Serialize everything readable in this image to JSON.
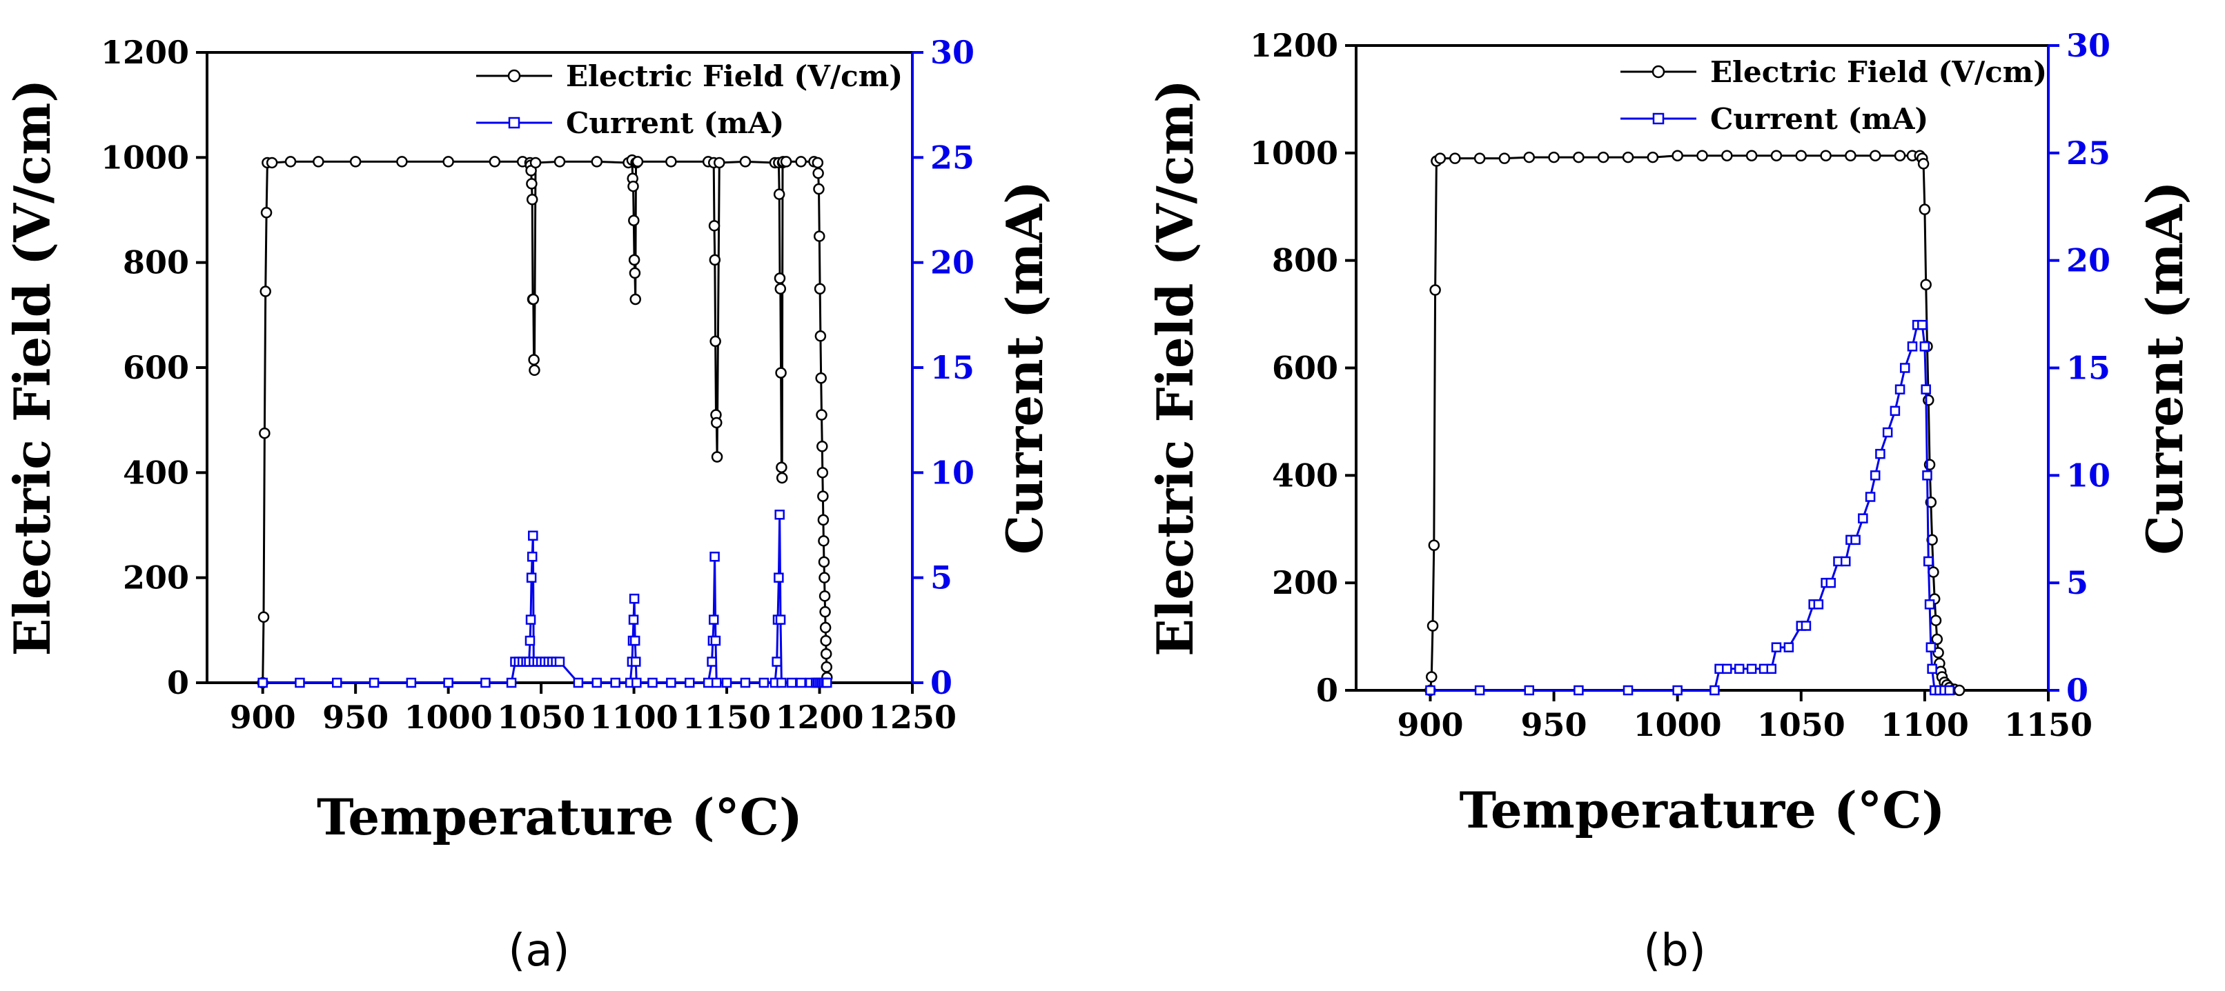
{
  "figure": {
    "panel_labels_text": [
      "(a)",
      "(b)"
    ],
    "colors": {
      "field": "#000000",
      "current": "#0000ee",
      "background": "#ffffff"
    }
  },
  "chart_data": [
    {
      "id": "a",
      "type": "line",
      "panel_label": "(a)",
      "xlabel": "Temperature (°C)",
      "ylabel": "Electric Field (V/cm)",
      "y2label": "Current (mA)",
      "xlim": [
        870,
        1250
      ],
      "ylim": [
        0,
        1200
      ],
      "y2lim": [
        0,
        30
      ],
      "xticks": [
        900,
        950,
        1000,
        1050,
        1100,
        1150,
        1200,
        1250
      ],
      "yticks": [
        0,
        200,
        400,
        600,
        800,
        1000,
        1200
      ],
      "y2ticks": [
        0,
        5,
        10,
        15,
        20,
        25,
        30
      ],
      "legend": [
        "Electric Field (V/cm)",
        "Current (mA)"
      ],
      "legend_position": "top-right",
      "series": [
        {
          "name": "Electric Field (V/cm)",
          "axis": "left",
          "marker": "circle",
          "color": "#000000",
          "x": [
            900,
            900.5,
            901,
            901.5,
            902,
            902.5,
            905,
            915,
            930,
            950,
            975,
            1000,
            1025,
            1040,
            1044,
            1044.3,
            1044.6,
            1044.9,
            1045.2,
            1045.5,
            1045.8,
            1046.1,
            1046.4,
            1047,
            1060,
            1080,
            1097,
            1099,
            1099.3,
            1099.6,
            1099.9,
            1100.2,
            1100.5,
            1100.8,
            1101.1,
            1101.4,
            1102,
            1120,
            1140,
            1143,
            1143.3,
            1143.6,
            1143.9,
            1144.2,
            1144.5,
            1144.8,
            1146,
            1160,
            1176,
            1178,
            1178.3,
            1178.6,
            1178.9,
            1179.2,
            1179.5,
            1179.8,
            1180.1,
            1180.4,
            1182,
            1190,
            1197,
            1199,
            1199.3,
            1199.6,
            1199.9,
            1200.2,
            1200.5,
            1200.8,
            1201.1,
            1201.4,
            1201.6,
            1201.8,
            1202,
            1202.2,
            1202.4,
            1202.6,
            1202.8,
            1203,
            1203.2,
            1203.4,
            1203.6,
            1203.8,
            1204
          ],
          "y": [
            0,
            125,
            475,
            745,
            895,
            990,
            990,
            992,
            992,
            992,
            992,
            992,
            992,
            992,
            990,
            985,
            975,
            950,
            920,
            730,
            730,
            615,
            595,
            990,
            992,
            992,
            990,
            995,
            960,
            945,
            880,
            805,
            780,
            730,
            990,
            990,
            992,
            992,
            992,
            990,
            870,
            805,
            650,
            510,
            495,
            430,
            990,
            992,
            990,
            990,
            930,
            770,
            750,
            590,
            410,
            390,
            990,
            992,
            992,
            992,
            992,
            990,
            970,
            940,
            850,
            750,
            660,
            580,
            510,
            450,
            400,
            355,
            310,
            270,
            230,
            200,
            165,
            135,
            105,
            80,
            55,
            30,
            10
          ]
        },
        {
          "name": "Current (mA)",
          "axis": "right",
          "marker": "square",
          "color": "#0000ee",
          "x": [
            900,
            920,
            940,
            960,
            980,
            1000,
            1020,
            1034,
            1036,
            1038,
            1040,
            1042,
            1043.5,
            1044,
            1044.4,
            1044.8,
            1045.2,
            1045.6,
            1046,
            1048,
            1050,
            1052,
            1054,
            1056,
            1058,
            1060,
            1070,
            1080,
            1090,
            1098,
            1099,
            1099.4,
            1099.8,
            1100.2,
            1100.6,
            1101,
            1101.4,
            1110,
            1120,
            1130,
            1140,
            1142,
            1142.5,
            1143,
            1143.5,
            1144,
            1144.5,
            1150,
            1160,
            1170,
            1176,
            1177,
            1177.5,
            1178,
            1178.5,
            1179,
            1179.5,
            1185,
            1190,
            1195,
            1198,
            1199,
            1200,
            1201,
            1202,
            1203,
            1204
          ],
          "y": [
            0,
            0,
            0,
            0,
            0,
            0,
            0,
            0,
            1,
            1,
            1,
            1,
            1,
            2,
            3,
            5,
            6,
            7,
            1,
            1,
            1,
            1,
            1,
            1,
            1,
            1,
            0,
            0,
            0,
            0,
            1,
            2,
            3,
            4,
            2,
            1,
            0,
            0,
            0,
            0,
            0,
            1,
            2,
            3,
            6,
            2,
            0,
            0,
            0,
            0,
            0,
            1,
            3,
            5,
            8,
            3,
            0,
            0,
            0,
            0,
            0,
            0,
            0,
            0,
            0,
            0,
            0
          ]
        }
      ]
    },
    {
      "id": "b",
      "type": "line",
      "panel_label": "(b)",
      "xlabel": "Temperature (°C)",
      "ylabel": "Electric Field (V/cm)",
      "y2label": "Current (mA)",
      "xlim": [
        870,
        1150
      ],
      "ylim": [
        0,
        1200
      ],
      "y2lim": [
        0,
        30
      ],
      "xticks": [
        900,
        950,
        1000,
        1050,
        1100,
        1150
      ],
      "yticks": [
        0,
        200,
        400,
        600,
        800,
        1000,
        1200
      ],
      "y2ticks": [
        0,
        5,
        10,
        15,
        20,
        25,
        30
      ],
      "legend": [
        "Electric Field (V/cm)",
        "Current (mA)"
      ],
      "legend_position": "top-right",
      "series": [
        {
          "name": "Electric Field (V/cm)",
          "axis": "left",
          "marker": "circle",
          "color": "#000000",
          "x": [
            900,
            900.5,
            901,
            901.5,
            902,
            902.5,
            904,
            910,
            920,
            930,
            940,
            950,
            960,
            970,
            980,
            990,
            1000,
            1010,
            1020,
            1030,
            1040,
            1050,
            1060,
            1070,
            1080,
            1090,
            1095,
            1098,
            1099,
            1099.5,
            1100,
            1100.5,
            1101,
            1101.5,
            1102,
            1102.5,
            1103,
            1103.5,
            1104,
            1104.5,
            1105,
            1105.5,
            1106,
            1106.5,
            1107,
            1108,
            1109,
            1110,
            1112,
            1114
          ],
          "y": [
            0,
            25,
            120,
            270,
            745,
            985,
            990,
            990,
            990,
            990,
            992,
            992,
            992,
            992,
            992,
            992,
            995,
            995,
            995,
            995,
            995,
            995,
            995,
            995,
            995,
            995,
            995,
            995,
            990,
            980,
            895,
            755,
            640,
            540,
            420,
            350,
            280,
            220,
            170,
            130,
            95,
            70,
            50,
            35,
            25,
            15,
            10,
            5,
            2,
            0
          ]
        },
        {
          "name": "Current (mA)",
          "axis": "right",
          "marker": "square",
          "color": "#0000ee",
          "x": [
            900,
            920,
            940,
            960,
            980,
            1000,
            1015,
            1017,
            1020,
            1025,
            1030,
            1035,
            1038,
            1040,
            1045,
            1050,
            1052,
            1055,
            1057,
            1060,
            1062,
            1065,
            1068,
            1070,
            1072,
            1075,
            1078,
            1080,
            1082,
            1085,
            1088,
            1090,
            1092,
            1095,
            1097,
            1099,
            1100,
            1100.5,
            1101,
            1101.5,
            1102,
            1102.5,
            1103,
            1104,
            1106,
            1108,
            1110
          ],
          "y": [
            0,
            0,
            0,
            0,
            0,
            0,
            0,
            1,
            1,
            1,
            1,
            1,
            1,
            2,
            2,
            3,
            3,
            4,
            4,
            5,
            5,
            6,
            6,
            7,
            7,
            8,
            9,
            10,
            11,
            12,
            13,
            14,
            15,
            16,
            17,
            17,
            16,
            14,
            10,
            6,
            4,
            2,
            1,
            0,
            0,
            0,
            0
          ]
        }
      ]
    }
  ]
}
